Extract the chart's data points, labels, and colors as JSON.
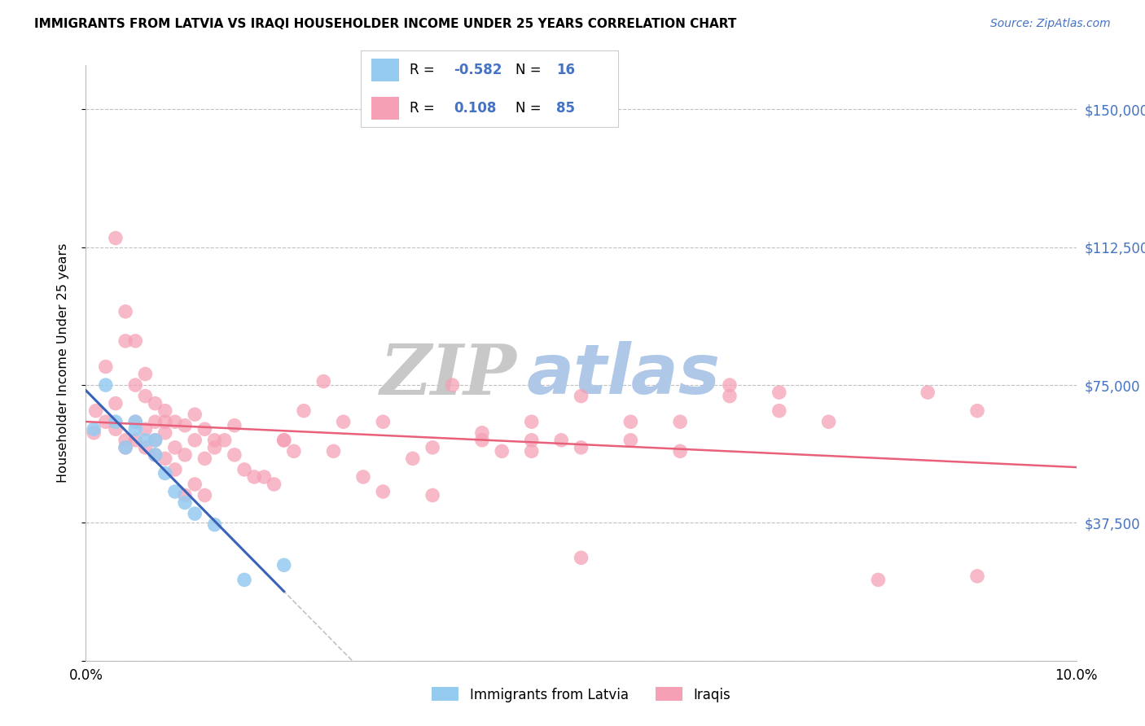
{
  "title": "IMMIGRANTS FROM LATVIA VS IRAQI HOUSEHOLDER INCOME UNDER 25 YEARS CORRELATION CHART",
  "source": "Source: ZipAtlas.com",
  "ylabel": "Householder Income Under 25 years",
  "xmin": 0.0,
  "xmax": 0.1,
  "ymin": 0,
  "ymax": 162000,
  "yticks": [
    0,
    37500,
    75000,
    112500,
    150000
  ],
  "ytick_labels": [
    "",
    "$37,500",
    "$75,000",
    "$112,500",
    "$150,000"
  ],
  "xticks": [
    0.0,
    0.02,
    0.04,
    0.06,
    0.08,
    0.1
  ],
  "xtick_labels": [
    "0.0%",
    "",
    "",
    "",
    "",
    "10.0%"
  ],
  "legend_r_latvia": "-0.582",
  "legend_n_latvia": "16",
  "legend_r_iraq": "0.108",
  "legend_n_iraq": "85",
  "color_latvia": "#96CBF0",
  "color_iraq": "#F5A0B5",
  "color_latvia_line": "#3A62B8",
  "color_iraq_line": "#E8607A",
  "watermark_zip": "ZIP",
  "watermark_atlas": "atlas",
  "watermark_color_zip": "#C8C8C8",
  "watermark_color_atlas": "#B0C8E8",
  "latvia_x": [
    0.0008,
    0.002,
    0.003,
    0.004,
    0.005,
    0.005,
    0.006,
    0.007,
    0.007,
    0.008,
    0.009,
    0.01,
    0.011,
    0.013,
    0.016,
    0.02
  ],
  "latvia_y": [
    63000,
    75000,
    65000,
    58000,
    63000,
    65000,
    60000,
    56000,
    60000,
    51000,
    46000,
    43000,
    40000,
    37000,
    22000,
    26000
  ],
  "iraq_x": [
    0.0008,
    0.001,
    0.002,
    0.002,
    0.003,
    0.003,
    0.004,
    0.004,
    0.004,
    0.005,
    0.005,
    0.005,
    0.006,
    0.006,
    0.006,
    0.007,
    0.007,
    0.007,
    0.008,
    0.008,
    0.008,
    0.009,
    0.009,
    0.01,
    0.01,
    0.011,
    0.011,
    0.012,
    0.012,
    0.013,
    0.013,
    0.014,
    0.015,
    0.015,
    0.016,
    0.017,
    0.018,
    0.019,
    0.02,
    0.021,
    0.022,
    0.024,
    0.026,
    0.028,
    0.03,
    0.033,
    0.035,
    0.037,
    0.04,
    0.042,
    0.045,
    0.048,
    0.05,
    0.055,
    0.06,
    0.065,
    0.07,
    0.045,
    0.05,
    0.055,
    0.06,
    0.065,
    0.07,
    0.075,
    0.08,
    0.085,
    0.09,
    0.02,
    0.025,
    0.03,
    0.035,
    0.04,
    0.045,
    0.05,
    0.003,
    0.004,
    0.005,
    0.006,
    0.007,
    0.008,
    0.009,
    0.01,
    0.011,
    0.012,
    0.09
  ],
  "iraq_y": [
    62000,
    68000,
    65000,
    80000,
    63000,
    70000,
    60000,
    87000,
    58000,
    60000,
    75000,
    65000,
    63000,
    72000,
    58000,
    60000,
    65000,
    56000,
    62000,
    68000,
    55000,
    58000,
    65000,
    56000,
    64000,
    60000,
    67000,
    55000,
    63000,
    58000,
    60000,
    60000,
    56000,
    64000,
    52000,
    50000,
    50000,
    48000,
    60000,
    57000,
    68000,
    76000,
    65000,
    50000,
    46000,
    55000,
    58000,
    75000,
    62000,
    57000,
    57000,
    60000,
    28000,
    60000,
    57000,
    75000,
    73000,
    65000,
    72000,
    65000,
    65000,
    72000,
    68000,
    65000,
    22000,
    73000,
    68000,
    60000,
    57000,
    65000,
    45000,
    60000,
    60000,
    58000,
    115000,
    95000,
    87000,
    78000,
    70000,
    65000,
    52000,
    45000,
    48000,
    45000,
    23000
  ]
}
